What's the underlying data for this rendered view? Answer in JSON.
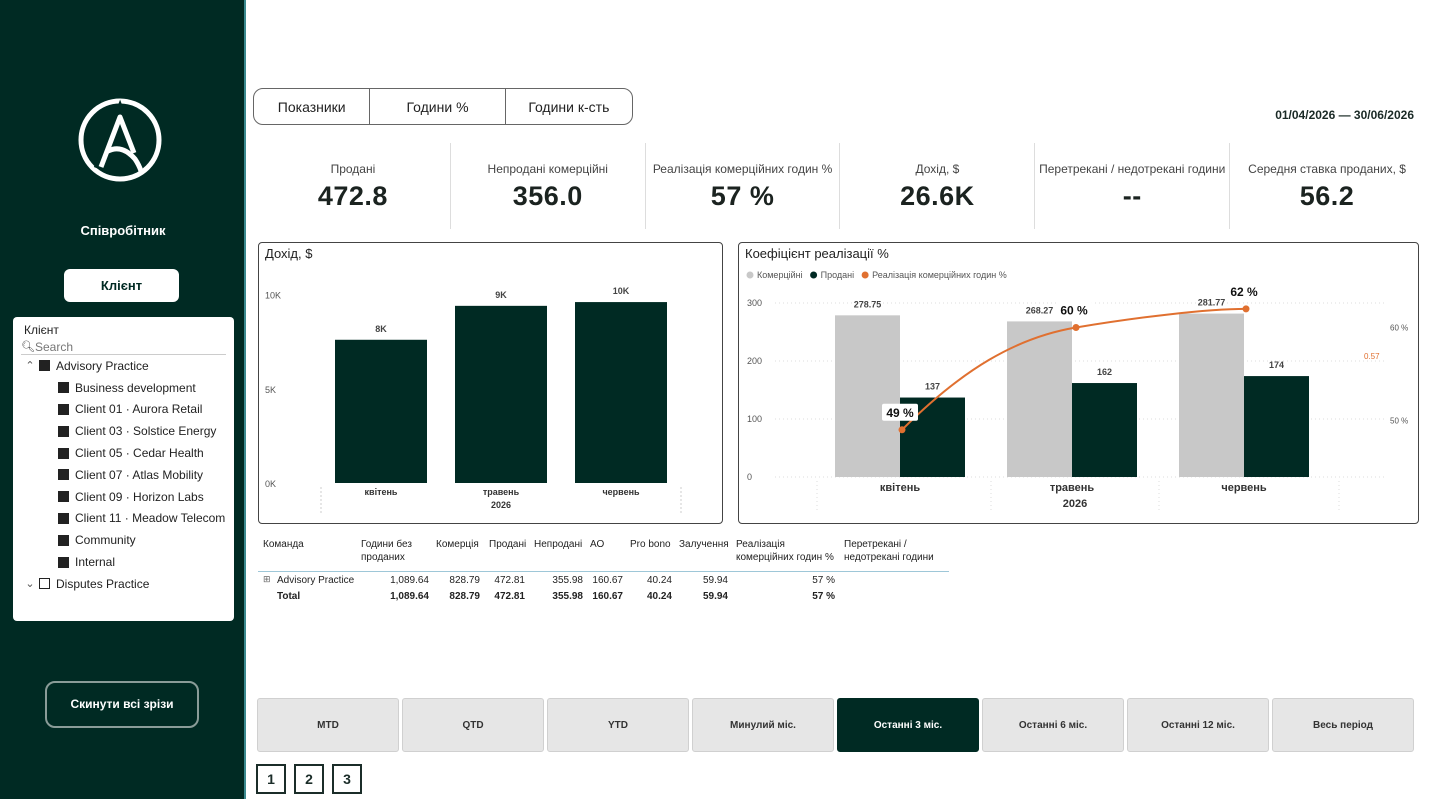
{
  "sidebar": {
    "employee_title": "Співробітник",
    "client_button": "Клієнт",
    "slicer": {
      "title": "Клієнт",
      "search_placeholder": "Search",
      "groups": [
        {
          "label": "Advisory Practice",
          "expanded": true,
          "checked": true,
          "children": [
            "Business development",
            "Client 01 · Aurora Retail",
            "Client 03 · Solstice Energy",
            "Client 05 · Cedar Health",
            "Client 07 · Atlas Mobility",
            "Client 09 · Horizon Labs",
            "Client 11 · Meadow Telecom",
            "Community",
            "Internal"
          ]
        },
        {
          "label": "Disputes Practice",
          "expanded": false,
          "checked": false,
          "children": []
        }
      ]
    },
    "reset_button": "Скинути всі зрізи"
  },
  "tabs": [
    "Показники",
    "Години %",
    "Години к-сть"
  ],
  "date_range": "01/04/2026  —  30/06/2026",
  "kpis": [
    {
      "label": "Продані",
      "value": "472.8"
    },
    {
      "label": "Непродані комерційні",
      "value": "356.0"
    },
    {
      "label": "Реалізація комерційних годин %",
      "value": "57 %"
    },
    {
      "label": "Дохід, $",
      "value": "26.6K"
    },
    {
      "label": "Перетрекані / недотрекані години",
      "value": "--"
    },
    {
      "label": "Середня ставка проданих, $",
      "value": "56.2"
    }
  ],
  "chart_data": [
    {
      "type": "bar",
      "title": "Дохід, $",
      "categories": [
        "квітень",
        "травень",
        "червень"
      ],
      "x_group_label": "2026",
      "values": [
        7.6,
        9.4,
        9.6
      ],
      "data_labels": [
        "8K",
        "9K",
        "10K"
      ],
      "y_ticks": [
        "0K",
        "5K",
        "10K"
      ],
      "ylim": [
        0,
        10.4
      ],
      "color": "#002a23"
    },
    {
      "type": "bar",
      "title": "Коефіцієнт реалізації %",
      "categories": [
        "квітень",
        "травень",
        "червень"
      ],
      "x_group_label": "2026",
      "legend": "top-left",
      "series": [
        {
          "name": "Комерційні",
          "values": [
            278.75,
            268.27,
            281.77
          ],
          "color": "#c8c8c8"
        },
        {
          "name": "Продані",
          "values": [
            137,
            162,
            174
          ],
          "color": "#002a23"
        }
      ],
      "line_series": {
        "name": "Реалізація комерційних годин %",
        "values": [
          49,
          60,
          62
        ],
        "labels": [
          "49 %",
          "60 %",
          "62 %"
        ],
        "color": "#e07030",
        "y2lim": [
          45,
          65
        ]
      },
      "y_ticks": [
        "0",
        "100",
        "200",
        "300"
      ],
      "ylim": [
        0,
        300
      ],
      "y2_ticks": [
        "50 %",
        "60 %"
      ],
      "reference_label": "0.57"
    }
  ],
  "matrix": {
    "headers": [
      "Команда",
      "Години без\nпроданих",
      "Комерція",
      "Продані",
      "Непродані",
      "АО",
      "Pro bono",
      "Залучення",
      "Реалізація\nкомерційних годин %",
      "Перетрекані /\nнедотрекані години"
    ],
    "rows": [
      {
        "label": "Advisory Practice",
        "values": [
          "1,089.64",
          "828.79",
          "472.81",
          "355.98",
          "160.67",
          "40.24",
          "59.94",
          "57 %"
        ]
      }
    ],
    "total": {
      "label": "Total",
      "values": [
        "1,089.64",
        "828.79",
        "472.81",
        "355.98",
        "160.67",
        "40.24",
        "59.94",
        "57 %"
      ]
    }
  },
  "periods": [
    "MTD",
    "QTD",
    "YTD",
    "Минулий міс.",
    "Останні 3 міс.",
    "Останні 6 міс.",
    "Останні 12 міс.",
    "Весь період"
  ],
  "active_period": "Останні 3 міс.",
  "pages": [
    "1",
    "2",
    "3"
  ]
}
